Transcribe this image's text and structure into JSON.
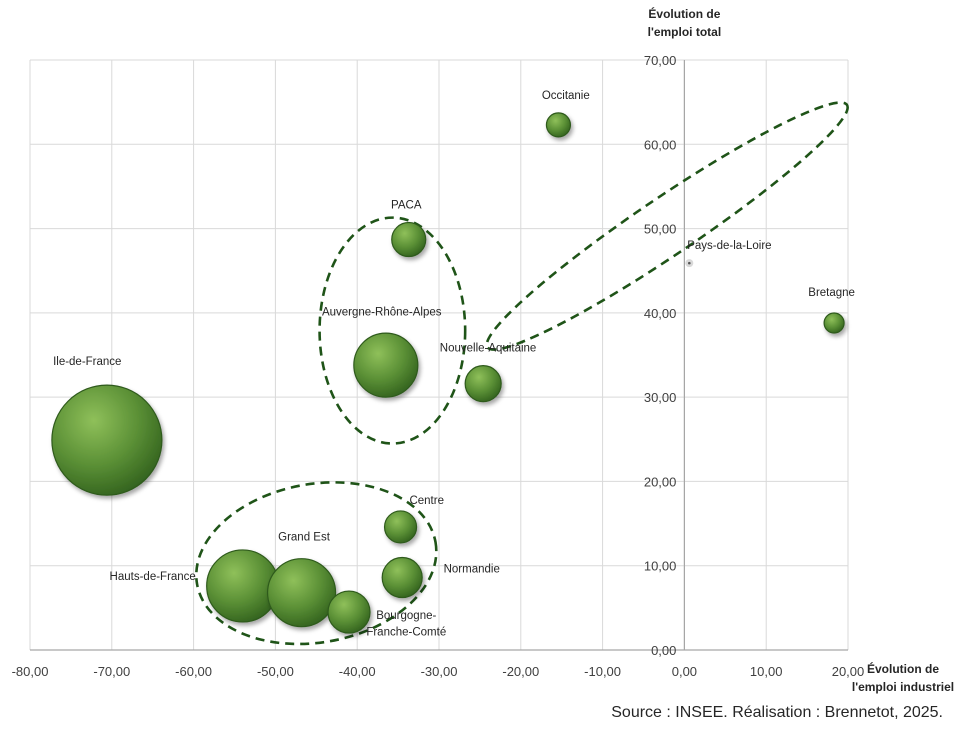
{
  "chart_data": {
    "type": "scatter",
    "xlim": [
      -80,
      20
    ],
    "ylim": [
      0,
      70
    ],
    "x_ticks": [
      "-80,00",
      "-70,00",
      "-60,00",
      "-50,00",
      "-40,00",
      "-30,00",
      "-20,00",
      "-10,00",
      "0,00",
      "10,00",
      "20,00"
    ],
    "y_ticks": [
      "0,00",
      "10,00",
      "20,00",
      "30,00",
      "40,00",
      "50,00",
      "60,00",
      "70,00"
    ],
    "grid": true,
    "xlabel": [
      "Évolution de",
      "l'emploi industriel"
    ],
    "ylabel": [
      "Évolution de",
      "l'emploi total"
    ],
    "bubble_color": "#5a8f35",
    "group_color": "#1f5418",
    "points": [
      {
        "name": "Ile-de-France",
        "x": -70.6,
        "y": 24.9,
        "size": 55
      },
      {
        "name": "Hauts-de-France",
        "x": -54.0,
        "y": 7.6,
        "size": 36
      },
      {
        "name": "Grand Est",
        "x": -46.8,
        "y": 6.8,
        "size": 34
      },
      {
        "name": "Bourgogne-Franche-Comté",
        "x": -41.0,
        "y": 4.5,
        "size": 21
      },
      {
        "name": "Centre",
        "x": -34.7,
        "y": 14.6,
        "size": 16
      },
      {
        "name": "Normandie",
        "x": -34.5,
        "y": 8.6,
        "size": 20
      },
      {
        "name": "Auvergne-Rhône-Alpes",
        "x": -36.5,
        "y": 33.8,
        "size": 32
      },
      {
        "name": "PACA",
        "x": -33.7,
        "y": 48.7,
        "size": 17
      },
      {
        "name": "Nouvelle-Aquitaine",
        "x": -24.6,
        "y": 31.6,
        "size": 18
      },
      {
        "name": "Occitanie",
        "x": -15.4,
        "y": 62.3,
        "size": 12
      },
      {
        "name": "Pays-de-la-Loire",
        "x": 0.6,
        "y": 45.9,
        "size": 2
      },
      {
        "name": "Bretagne",
        "x": 18.3,
        "y": 38.8,
        "size": 10
      }
    ],
    "labels": [
      {
        "point": "Ile-de-France",
        "text": "Ile-de-France",
        "lx": -73.0,
        "ly": 33.8
      },
      {
        "point": "Hauts-de-France",
        "text": "Hauts-de-France",
        "lx": -65.0,
        "ly": 8.3
      },
      {
        "point": "Grand Est",
        "text": "Grand Est",
        "lx": -46.5,
        "ly": 13.0
      },
      {
        "point": "Bourgogne-Franche-Comté",
        "text": "Bourgogne-",
        "lx": -34.0,
        "ly": 3.7
      },
      {
        "point": "Bourgogne-Franche-Comté",
        "text": "Franche-Comté",
        "lx": -34.0,
        "ly": 1.7
      },
      {
        "point": "Centre",
        "text": "Centre",
        "lx": -31.5,
        "ly": 17.3
      },
      {
        "point": "Normandie",
        "text": "Normandie",
        "lx": -26.0,
        "ly": 9.2
      },
      {
        "point": "Auvergne-Rhône-Alpes",
        "text": "Auvergne-Rhône-Alpes",
        "lx": -37.0,
        "ly": 39.7
      },
      {
        "point": "PACA",
        "text": "PACA",
        "lx": -34.0,
        "ly": 52.4
      },
      {
        "point": "Nouvelle-Aquitaine",
        "text": "Nouvelle-Aquitaine",
        "lx": -24.0,
        "ly": 35.4
      },
      {
        "point": "Occitanie",
        "text": "Occitanie",
        "lx": -14.5,
        "ly": 65.4
      },
      {
        "point": "Pays-de-la-Loire",
        "text": "Pays-de-la-Loire",
        "lx": 5.5,
        "ly": 47.6
      },
      {
        "point": "Bretagne",
        "text": "Bretagne",
        "lx": 18.0,
        "ly": 42.0
      }
    ],
    "groups": [
      {
        "name": "group-1",
        "cx": -35.7,
        "cy": 37.9,
        "rx": 8.9,
        "ry": 13.4,
        "rotation": 0
      },
      {
        "name": "group-2",
        "cx": -2.1,
        "cy": 50.3,
        "rx": 26.5,
        "ry": 3.4,
        "rotation": -34
      },
      {
        "name": "group-3",
        "cx": -45.0,
        "cy": 10.3,
        "rx": 14.8,
        "ry": 9.4,
        "rotation": -10
      }
    ]
  },
  "source": "Source : INSEE. Réalisation : Brennetot, 2025."
}
